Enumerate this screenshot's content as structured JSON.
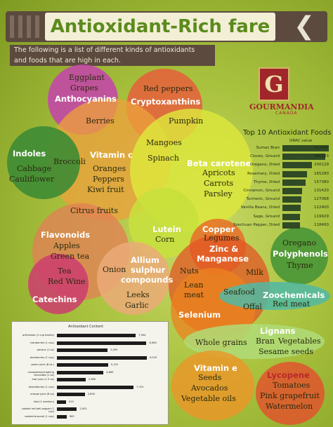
{
  "header": {
    "title": "Antioxidant-Rich fare",
    "chevron": "❮"
  },
  "intro": {
    "line1": "The following is a list of different kinds of antioxidants",
    "line2": "and foods that are high in each."
  },
  "logo": {
    "letter": "G",
    "name": "GOURMANDIA",
    "country": "CANADA"
  },
  "groups": {
    "anthocyanins": {
      "title": "Anthocyanins",
      "foods": [
        "Eggplant",
        "Grapes"
      ]
    },
    "cryptoxanthins": {
      "title": "Cryptoxanthins",
      "foods": [
        "Red peppers",
        "Pumpkin"
      ]
    },
    "berries": "Berries",
    "indoles": {
      "title": "Indoles",
      "foods": [
        "Cabbage",
        "Cauliflower"
      ]
    },
    "broccoli": "Broccoli",
    "vitamin_c": {
      "title": "Vitamin c",
      "foods": [
        "Oranges",
        "Peppers",
        "Kiwi fruit"
      ]
    },
    "mangoes": "Mangoes",
    "spinach": "Spinach",
    "beta_carotene": {
      "title": "Beta carotene",
      "foods": [
        "Apricots",
        "Carrots",
        "Parsley"
      ]
    },
    "citrus": "Citrus fruits",
    "lutein": {
      "title": "Lutein",
      "foods": [
        "Corn"
      ]
    },
    "flavonoids": {
      "title": "Flavonoids",
      "foods": [
        "Apples",
        "Green tea"
      ]
    },
    "tea": "Tea",
    "red_wine": "Red Wine",
    "catechins": {
      "title": "Catechins"
    },
    "allium": {
      "title_line1": "Allium",
      "title_line2": "sulphur",
      "title_line3": "compounds",
      "foods": [
        "Leeks",
        "Garlic"
      ]
    },
    "onion": "Onion",
    "copper": {
      "title": "Copper",
      "foods": [
        "Legumes"
      ]
    },
    "zinc": {
      "title_line1": "Zinc &",
      "title_line2": "Manganese"
    },
    "nuts": "Nuts",
    "milk": "Milk",
    "lean_meat_1": "Lean",
    "lean_meat_2": "meat",
    "seafood": "Seafood",
    "offal": "Offal",
    "selenium": {
      "title": "Selenium"
    },
    "zoochemicals": {
      "title": "Zoochemicals",
      "foods": [
        "Red meat"
      ]
    },
    "polyphenols": {
      "title": "Polyphenols",
      "foods": [
        "Oregano",
        "Thyme"
      ]
    },
    "lignans": {
      "title": "Lignans",
      "foods": [
        "Bran",
        "Vegetables",
        "Sesame seeds"
      ]
    },
    "whole_grains": "Whole grains",
    "vitamin_e": {
      "title": "Vitamin e",
      "foods": [
        "Seeds",
        "Avocados",
        "Vegetable oils"
      ]
    },
    "lycopene": {
      "title": "Lycopene",
      "foods": [
        "Tomatoes",
        "Pink grapefruit",
        "Watermelon"
      ]
    }
  },
  "chart_data": [
    {
      "type": "bar",
      "title": "Top 10 Antioxidant Foods",
      "subtitle": "ORAC value",
      "categories": [
        "Sumac Bran",
        "Cloves, Ground",
        "Oregano, Dried",
        "Rosemary, Dried",
        "Thyme, Dried",
        "Cinnamon, Ground",
        "Turmeric, Ground",
        "Vanilla Beans, Dried",
        "Sage, Ground",
        "Szechuan Pepper, Dried"
      ],
      "values": [
        312400,
        290283,
        200129,
        165280,
        157380,
        131420,
        127068,
        122400,
        119929,
        118400
      ],
      "value_labels": [
        "312400",
        "290283",
        "200129",
        "165280",
        "157380",
        "131420",
        "127068",
        "122400",
        "119929",
        "118400"
      ],
      "colors": {
        "bar": "#2f4a24"
      }
    },
    {
      "type": "bar",
      "title": "Antioxidant Content",
      "categories": [
        "artichokes (1 cup hearts)",
        "cranberries (1 cup)",
        "pecans (1 oz)",
        "blueberries (1 cup)",
        "green juice (8 oz.)",
        "unsweetened baking chocolate (1 oz)",
        "kiwi juice (1.5 oz)",
        "blackberries (1 cup)",
        "orange juice (8 oz)",
        "kiwi (1 medium)",
        "cooked red bell pepper (1 cup)",
        "cooked broccoli (1 cup)"
      ],
      "values": [
        7904,
        8983,
        5095,
        9019,
        5120,
        4669,
        2890,
        7701,
        2800,
        919,
        2001,
        982
      ],
      "value_labels": [
        "7,904",
        "8,983",
        "5,095",
        "9,019",
        "5,120",
        "4,669",
        "2,890",
        "7,701",
        "2,800",
        "919",
        "2,001",
        "982"
      ],
      "colors": {
        "bar": "#1c1c1c"
      }
    }
  ]
}
